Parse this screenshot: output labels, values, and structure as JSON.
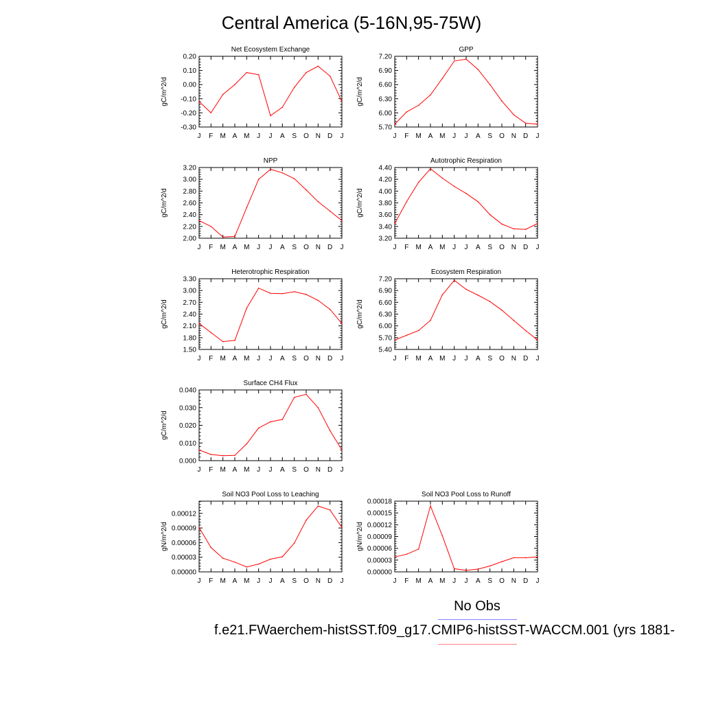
{
  "title": "Central America (5-16N,95-75W)",
  "months": [
    "J",
    "F",
    "M",
    "A",
    "M",
    "J",
    "J",
    "A",
    "S",
    "O",
    "N",
    "D",
    "J"
  ],
  "colors": {
    "model_line": "#ff0000",
    "obs_legend_line": "#8080ff",
    "model_legend_line": "#ff8080"
  },
  "legend": {
    "obs_label": "No Obs",
    "case_label": "f.e21.FWaerchem-histSST.f09_g17.CMIP6-histSST-WACCM.001 (yrs 1881-"
  },
  "chart_data": [
    {
      "type": "line",
      "title": "Net Ecosystem Exchange",
      "ylabel": "gC/m^2/d",
      "ylim": [
        -0.3,
        0.2
      ],
      "yticks": [
        "-0.30",
        "-0.20",
        "-0.10",
        "0.00",
        "0.10",
        "0.20"
      ],
      "values": [
        -0.12,
        -0.2,
        -0.07,
        0.0,
        0.085,
        0.07,
        -0.22,
        -0.16,
        -0.02,
        0.085,
        0.13,
        0.06,
        -0.12
      ]
    },
    {
      "type": "line",
      "title": "GPP",
      "ylabel": "gC/m^2/d",
      "ylim": [
        5.7,
        7.2
      ],
      "yticks": [
        "5.70",
        "6.00",
        "6.30",
        "6.60",
        "6.90",
        "7.20"
      ],
      "values": [
        5.76,
        6.02,
        6.16,
        6.38,
        6.73,
        7.1,
        7.14,
        6.92,
        6.6,
        6.25,
        5.96,
        5.78,
        5.76
      ]
    },
    {
      "type": "line",
      "title": "NPP",
      "ylabel": "gC/m^2/d",
      "ylim": [
        2.0,
        3.2
      ],
      "yticks": [
        "2.00",
        "2.20",
        "2.40",
        "2.60",
        "2.80",
        "3.00",
        "3.20"
      ],
      "values": [
        2.3,
        2.2,
        2.02,
        2.03,
        2.52,
        3.0,
        3.17,
        3.11,
        3.01,
        2.82,
        2.62,
        2.46,
        2.3
      ]
    },
    {
      "type": "line",
      "title": "Autotrophic Respiration",
      "ylabel": "gC/m^2/d",
      "ylim": [
        3.2,
        4.4
      ],
      "yticks": [
        "3.20",
        "3.40",
        "3.60",
        "3.80",
        "4.00",
        "4.20",
        "4.40"
      ],
      "values": [
        3.45,
        3.82,
        4.15,
        4.38,
        4.22,
        4.08,
        3.96,
        3.82,
        3.6,
        3.44,
        3.36,
        3.35,
        3.45
      ]
    },
    {
      "type": "line",
      "title": "Heterotrophic Respiration",
      "ylabel": "gC/m^2/d",
      "ylim": [
        1.5,
        3.3
      ],
      "yticks": [
        "1.50",
        "1.80",
        "2.10",
        "2.40",
        "2.70",
        "3.00",
        "3.30"
      ],
      "values": [
        2.16,
        1.93,
        1.7,
        1.73,
        2.55,
        3.06,
        2.93,
        2.92,
        2.97,
        2.9,
        2.75,
        2.52,
        2.16
      ]
    },
    {
      "type": "line",
      "title": "Ecosystem Respiration",
      "ylabel": "gC/m^2/d",
      "ylim": [
        5.4,
        7.2
      ],
      "yticks": [
        "5.40",
        "5.70",
        "6.00",
        "6.30",
        "6.60",
        "6.90",
        "7.20"
      ],
      "values": [
        5.64,
        5.76,
        5.88,
        6.14,
        6.79,
        7.16,
        6.93,
        6.78,
        6.62,
        6.4,
        6.14,
        5.88,
        5.64
      ]
    },
    {
      "type": "line",
      "title": "Surface CH4 Flux",
      "ylabel": "gC/m^2/d",
      "ylim": [
        0.0,
        0.04
      ],
      "yticks": [
        "0.000",
        "0.010",
        "0.020",
        "0.030",
        "0.040"
      ],
      "values": [
        0.006,
        0.0035,
        0.0028,
        0.003,
        0.0095,
        0.0185,
        0.022,
        0.0233,
        0.0358,
        0.0375,
        0.03,
        0.017,
        0.006
      ]
    },
    null,
    {
      "type": "line",
      "title": "Soil NO3 Pool Loss to Leaching",
      "ylabel": "gN/m^2/d",
      "ylim": [
        0.0,
        0.000145
      ],
      "yticks": [
        "0.00000",
        "0.00003",
        "0.00006",
        "0.00009",
        "0.00012"
      ],
      "values": [
        9.1e-05,
        5e-05,
        2.8e-05,
        2e-05,
        1e-05,
        1.6e-05,
        2.6e-05,
        3.1e-05,
        5.9e-05,
        0.000106,
        0.000135,
        0.000127,
        9.1e-05
      ]
    },
    {
      "type": "line",
      "title": "Soil NO3 Pool Loss to Runoff",
      "ylabel": "gN/m^2/d",
      "ylim": [
        0.0,
        0.00018
      ],
      "yticks": [
        "0.00000",
        "0.00003",
        "0.00006",
        "0.00009",
        "0.00012",
        "0.00015",
        "0.00018"
      ],
      "values": [
        3.8e-05,
        4.5e-05,
        5.8e-05,
        0.000168,
        9.2e-05,
        8e-06,
        4e-06,
        7e-06,
        1.5e-05,
        2.6e-05,
        3.6e-05,
        3.6e-05,
        3.8e-05
      ]
    }
  ]
}
